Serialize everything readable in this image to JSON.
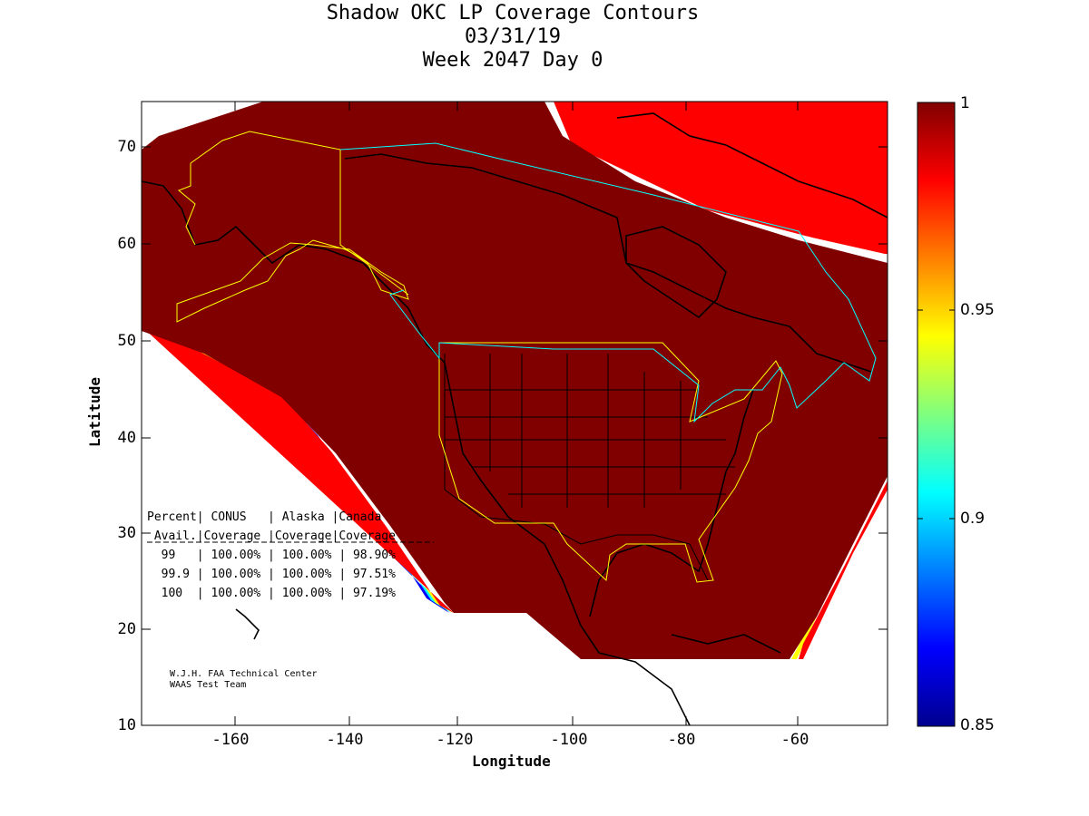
{
  "title": {
    "line1": "Shadow OKC LP Coverage Contours",
    "line2": "03/31/19",
    "line3": "Week 2047 Day 0"
  },
  "axes": {
    "xlabel": "Longitude",
    "ylabel": "Latitude",
    "x_ticks": [
      "-160",
      "-140",
      "-120",
      "-100",
      "-80",
      "-60"
    ],
    "y_ticks": [
      "70",
      "60",
      "50",
      "40",
      "30",
      "20",
      "10"
    ],
    "x_range": [
      -175,
      -50
    ],
    "y_range": [
      10,
      75
    ]
  },
  "colorbar": {
    "ticks": [
      "1",
      "0.95",
      "0.9",
      "0.85"
    ],
    "range": [
      0.85,
      1
    ],
    "colormap": "jet"
  },
  "stats_table": {
    "header1": "Percent| CONUS   | Alaska |Canada",
    "header2": " Avail.|Coverage |Coverage|Coverage",
    "rows": [
      "  99   | 100.00% | 100.00% | 98.90%",
      "  99.9 | 100.00% | 100.00% | 97.51%",
      "  100  | 100.00% | 100.00% | 97.19%"
    ]
  },
  "credit": {
    "line1": "W.J.H. FAA Technical Center",
    "line2": "WAAS Test Team"
  },
  "colors": {
    "coverage_full": "#800000",
    "conus_boundary": "#ffff00",
    "canada_boundary": "#00ffff",
    "coastline": "#000000"
  }
}
